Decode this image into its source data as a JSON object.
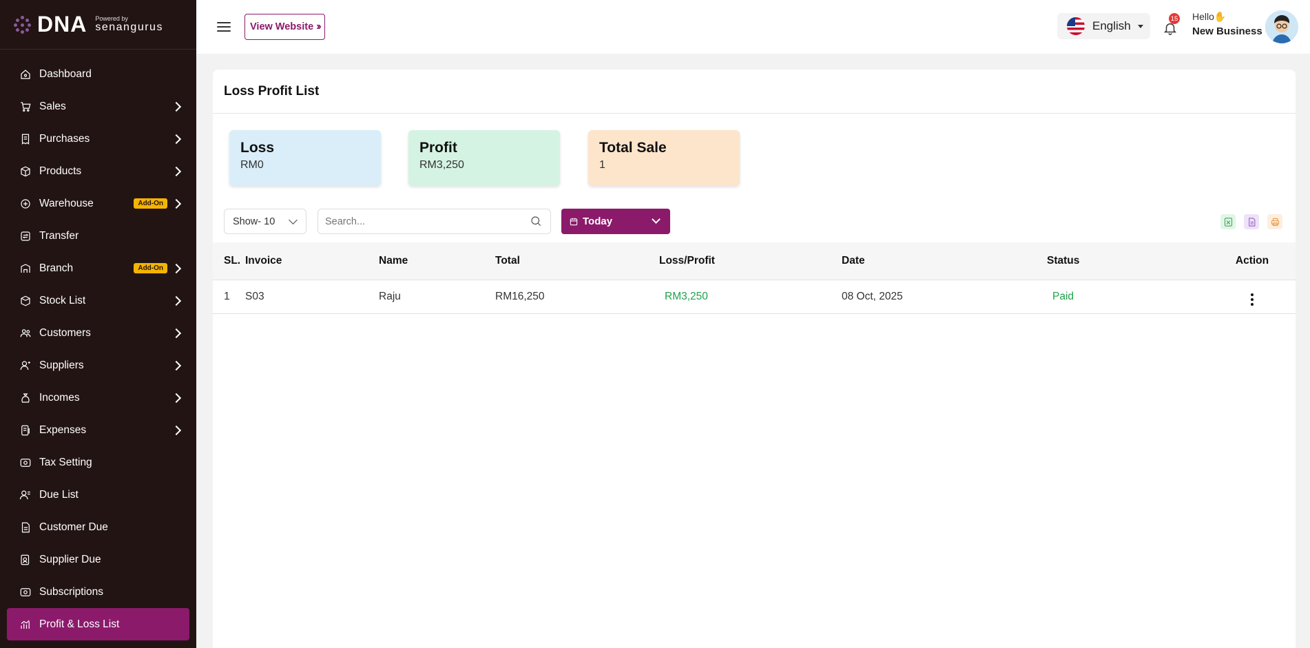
{
  "brand": {
    "logo": "DNA",
    "powered_by": "Powered by",
    "company": "senangurus"
  },
  "sidebar": {
    "items": [
      {
        "label": "Dashboard",
        "icon": "home-icon",
        "chevron": false
      },
      {
        "label": "Sales",
        "icon": "cart-icon",
        "chevron": true
      },
      {
        "label": "Purchases",
        "icon": "receipt-icon",
        "chevron": true
      },
      {
        "label": "Products",
        "icon": "box-icon",
        "chevron": true
      },
      {
        "label": "Warehouse",
        "icon": "warehouse-icon",
        "chevron": true,
        "badge": "Add-On"
      },
      {
        "label": "Transfer",
        "icon": "transfer-icon",
        "chevron": false
      },
      {
        "label": "Branch",
        "icon": "branch-icon",
        "chevron": true,
        "badge": "Add-On"
      },
      {
        "label": "Stock List",
        "icon": "stock-icon",
        "chevron": true
      },
      {
        "label": "Customers",
        "icon": "users-icon",
        "chevron": true
      },
      {
        "label": "Suppliers",
        "icon": "supplier-icon",
        "chevron": true
      },
      {
        "label": "Incomes",
        "icon": "money-bag-icon",
        "chevron": true
      },
      {
        "label": "Expenses",
        "icon": "expense-icon",
        "chevron": true
      },
      {
        "label": "Tax Setting",
        "icon": "tax-icon",
        "chevron": false
      },
      {
        "label": "Due List",
        "icon": "due-icon",
        "chevron": false
      },
      {
        "label": "Customer Due",
        "icon": "document-icon",
        "chevron": false
      },
      {
        "label": "Supplier Due",
        "icon": "supplier-due-icon",
        "chevron": false
      },
      {
        "label": "Subscriptions",
        "icon": "subscription-icon",
        "chevron": false
      },
      {
        "label": "Profit & Loss List",
        "icon": "chart-icon",
        "chevron": false,
        "active": true
      }
    ]
  },
  "header": {
    "view_website": "View Website",
    "language": "English",
    "notification_count": "15",
    "greeting": "Hello",
    "business_name": "New Business"
  },
  "page": {
    "title": "Loss Profit List",
    "stats": {
      "loss": {
        "label": "Loss",
        "value": "RM0"
      },
      "profit": {
        "label": "Profit",
        "value": "RM3,250"
      },
      "total_sale": {
        "label": "Total Sale",
        "value": "1"
      }
    },
    "filters": {
      "show": "Show- 10",
      "search_placeholder": "Search...",
      "date_range": "Today"
    },
    "table": {
      "columns": [
        "SL.",
        "Invoice",
        "Name",
        "Total",
        "Loss/Profit",
        "Date",
        "Status",
        "Action"
      ],
      "rows": [
        {
          "sl": "1",
          "invoice": "S03",
          "name": "Raju",
          "total": "RM16,250",
          "loss_profit": "RM3,250",
          "date": "08 Oct, 2025",
          "status": "Paid"
        }
      ]
    }
  },
  "colors": {
    "sidebar_bg": "#231414",
    "accent": "#8b1a6b",
    "addon_badge": "#f5b400",
    "success": "#1fa24a",
    "loss_card": "#d9eef9",
    "profit_card": "#d4f3e3",
    "total_card": "#fde5cc"
  }
}
